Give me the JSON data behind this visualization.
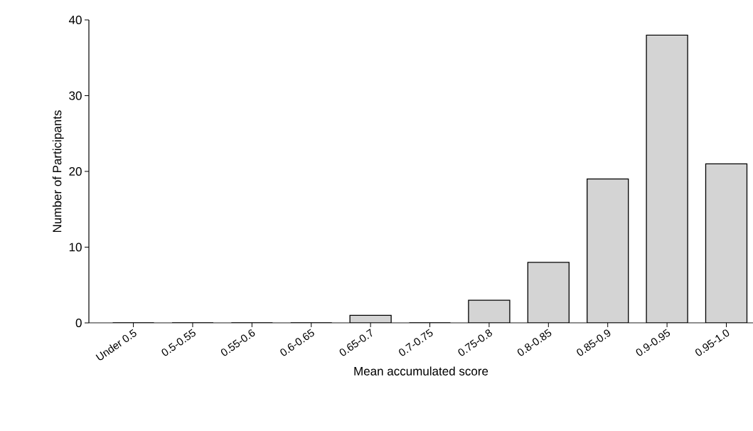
{
  "chart_data": {
    "type": "bar",
    "xlabel": "Mean accumulated score",
    "ylabel": "Number of Participants",
    "categories": [
      "Under 0.5",
      "0.5-0.55",
      "0.55-0.6",
      "0.6-0.65",
      "0.65-0.7",
      "0.7-0.75",
      "0.75-0.8",
      "0.8-0.85",
      "0.85-0.9",
      "0.9-0.95",
      "0.95-1.0"
    ],
    "values": [
      0,
      0,
      0,
      0,
      1,
      0,
      3,
      8,
      19,
      38,
      21
    ],
    "color": "#d4d4d4",
    "ylim": [
      0,
      40
    ],
    "yticks": [
      0,
      10,
      20,
      30,
      40
    ]
  }
}
